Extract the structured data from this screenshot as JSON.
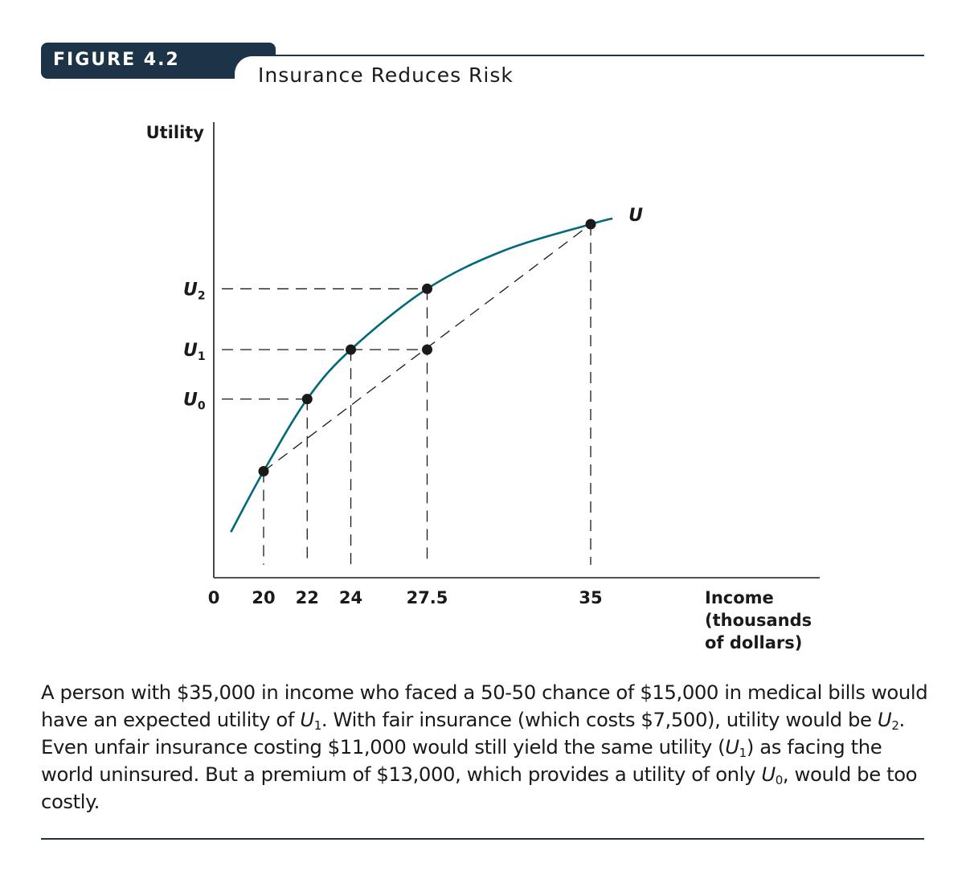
{
  "figure": {
    "label": "FIGURE 4.2",
    "title": "Insurance Reduces Risk"
  },
  "colors": {
    "badge": "#1d3347",
    "curve": "#00697a",
    "axis": "#1a1a1a",
    "point": "#1a1a1a"
  },
  "chart_data": {
    "type": "line",
    "title": "Insurance Reduces Risk",
    "xlabel": "Income (thousands of dollars)",
    "xlabel_lines": [
      "Income",
      "(thousands",
      "of dollars)"
    ],
    "ylabel": "Utility",
    "x_ticks": [
      "0",
      "20",
      "22",
      "24",
      "27.5",
      "35"
    ],
    "x_tick_values": [
      0,
      20,
      22,
      24,
      27.5,
      35
    ],
    "y_ticks": [
      "U2",
      "U1",
      "U0"
    ],
    "series": [
      {
        "name": "U",
        "kind": "utility-curve",
        "points": [
          [
            18.5,
            0.12
          ],
          [
            20,
            0.28
          ],
          [
            22,
            0.47
          ],
          [
            24,
            0.6
          ],
          [
            27.5,
            0.76
          ],
          [
            31,
            0.86
          ],
          [
            35,
            0.93
          ],
          [
            36,
            0.945
          ]
        ]
      }
    ],
    "marked_points": [
      {
        "x": 20,
        "y": 0.28
      },
      {
        "x": 22,
        "y": 0.47
      },
      {
        "x": 24,
        "y": 0.6
      },
      {
        "x": 27.5,
        "y": 0.76
      },
      {
        "x": 27.5,
        "y": 0.6
      },
      {
        "x": 35,
        "y": 0.93
      }
    ],
    "chord": {
      "from": [
        20,
        0.28
      ],
      "to": [
        35,
        0.93
      ],
      "style": "dashed"
    },
    "reference_levels": {
      "U2": 0.76,
      "U1": 0.6,
      "U0": 0.47
    },
    "xlim": [
      0,
      46
    ],
    "ylim": [
      0,
      1.3
    ],
    "curve_label": "U"
  },
  "caption": {
    "parts": [
      {
        "t": "A person with $35,000 in income who faced a 50-50 chance of $15,000 in medical bills would have an expected utility of "
      },
      {
        "t": "U",
        "i": true
      },
      {
        "t": "1",
        "sub": true
      },
      {
        "t": ". With fair insurance (which costs $7,500), utility would be "
      },
      {
        "t": "U",
        "i": true
      },
      {
        "t": "2",
        "sub": true
      },
      {
        "t": ". Even unfair insurance costing $11,000 would still yield the same utility ("
      },
      {
        "t": "U",
        "i": true
      },
      {
        "t": "1",
        "sub": true
      },
      {
        "t": ") as facing the world uninsured. But a premium of $13,000, which provides a utility of only "
      },
      {
        "t": "U",
        "i": true
      },
      {
        "t": "0",
        "sub": true
      },
      {
        "t": ", would be too costly."
      }
    ]
  }
}
